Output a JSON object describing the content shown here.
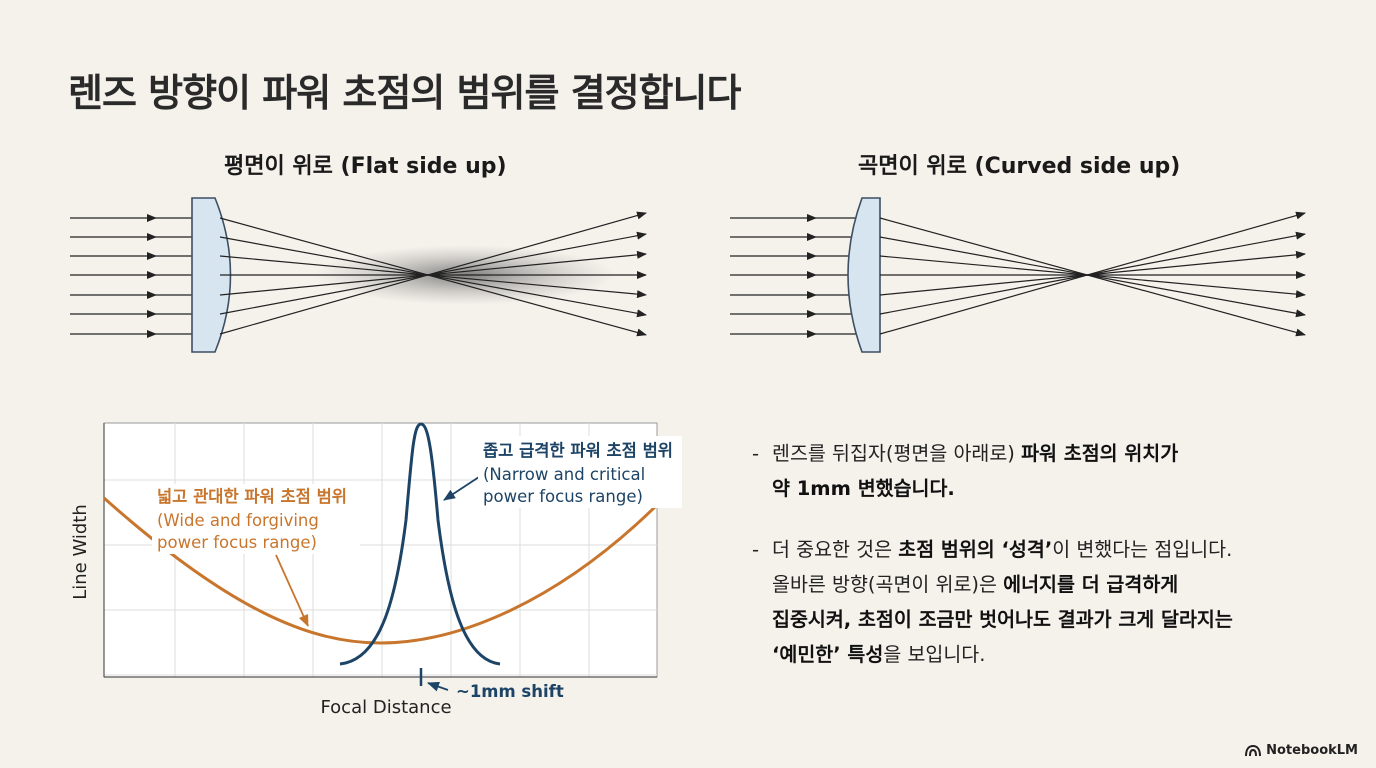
{
  "page": {
    "title": "렌즈 방향이 파워 초점의 범위를 결정합니다",
    "brand": "NotebookLM"
  },
  "lens_diagrams": {
    "left_heading": "평면이 위로 (Flat side up)",
    "right_heading": "곡면이 위로 (Curved side up)"
  },
  "chart_data": {
    "type": "line",
    "xlabel": "Focal Distance",
    "ylabel": "Line Width",
    "grid": true,
    "series": [
      {
        "name": "넓고 관대한 파워 초점 범위 (Wide and forgiving power focus range)",
        "color": "#c8762d",
        "shape": "wide-parabola"
      },
      {
        "name": "좁고 급격한 파워 초점 범위 (Narrow and critical power focus range)",
        "color": "#1d4466",
        "shape": "narrow-peak"
      }
    ],
    "annotations": {
      "wide_ko": "넓고 관대한 파워 초점 범위",
      "wide_en_1": "(Wide and forgiving",
      "wide_en_2": "power focus range)",
      "narrow_ko": "좁고 급격한 파워 초점 범위",
      "narrow_en_1": "(Narrow and critical",
      "narrow_en_2": "power focus range)",
      "shift": "~1mm shift"
    }
  },
  "notes": {
    "bullet1": {
      "dash": "-",
      "text_a": "렌즈를 뒤집자(평면을 아래로) ",
      "bold_a": "파워 초점의 위치가",
      "bold_b": "약 1mm 변했습니다."
    },
    "bullet2": {
      "dash": "-",
      "text_a": "더 중요한 것은 ",
      "bold_a": "초점 범위의 ‘성격’",
      "text_b": "이 변했다는 점입니다.",
      "text_c": "올바른 방향(곡면이 위로)은 ",
      "bold_b": "에너지를 더 급격하게",
      "bold_c": "집중시켜, 초점이 조금만 벗어나도 결과가 크게 달라지는",
      "bold_d": "‘예민한’ 특성",
      "text_d": "을 보입니다."
    }
  },
  "colors": {
    "background": "#f5f2ec",
    "lens_fill": "#d6e5f0",
    "lens_stroke": "#3d4f63",
    "wide_curve": "#c8762d",
    "narrow_curve": "#1d4466"
  }
}
